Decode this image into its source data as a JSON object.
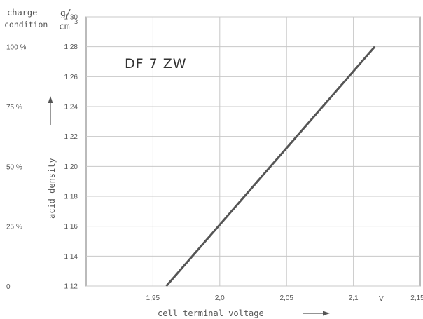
{
  "chart_data": {
    "type": "line",
    "title": "DF 7 ZW",
    "xlabel": "cell terminal voltage",
    "x_unit": "V",
    "ylabel": "acid density",
    "y_unit_top": "g/",
    "y_unit_bottom": "cm",
    "y_unit_exp": "3",
    "charge_header": [
      "charge",
      "condition"
    ],
    "xlim": [
      1.9,
      2.15
    ],
    "ylim": [
      1.12,
      1.3
    ],
    "x_ticks": [
      {
        "value": 1.95,
        "label": "1,95"
      },
      {
        "value": 2.0,
        "label": "2,0"
      },
      {
        "value": 2.05,
        "label": "2,05"
      },
      {
        "value": 2.1,
        "label": "2,1"
      },
      {
        "value": 2.15,
        "label": "2,15"
      }
    ],
    "y_ticks": [
      {
        "value": 1.12,
        "label": "1,12"
      },
      {
        "value": 1.14,
        "label": "1,14"
      },
      {
        "value": 1.16,
        "label": "1,16"
      },
      {
        "value": 1.18,
        "label": "1,18"
      },
      {
        "value": 1.2,
        "label": "1,20"
      },
      {
        "value": 1.22,
        "label": "1,22"
      },
      {
        "value": 1.24,
        "label": "1,24"
      },
      {
        "value": 1.26,
        "label": "1,26"
      },
      {
        "value": 1.28,
        "label": "1,28"
      },
      {
        "value": 1.3,
        "label": "1,30"
      }
    ],
    "charge_levels": [
      {
        "label": "100 %",
        "y": 1.28
      },
      {
        "label": "75 %",
        "y": 1.24
      },
      {
        "label": "50 %",
        "y": 1.2
      },
      {
        "label": "25 %",
        "y": 1.16
      },
      {
        "label": "0",
        "y": 1.12
      }
    ],
    "series": [
      {
        "x": [
          1.96,
          2.116
        ],
        "y": [
          1.12,
          1.28
        ]
      }
    ],
    "grid": true,
    "colors": {
      "line": "#555555",
      "grid": "#c8c8c8",
      "axis": "#777777",
      "text": "#555555"
    }
  }
}
